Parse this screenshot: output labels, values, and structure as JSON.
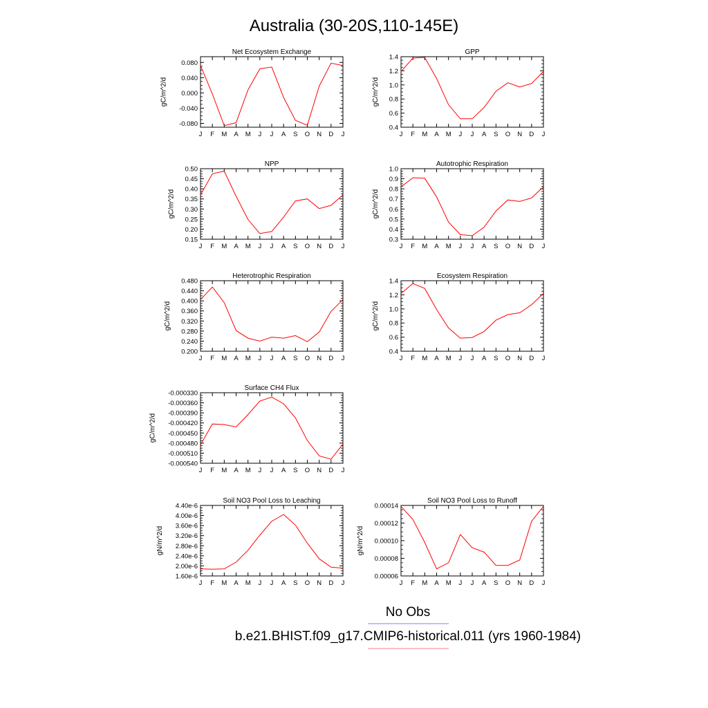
{
  "page": {
    "title": "Australia (30-20S,110-145E)",
    "legend": [
      {
        "label": "No Obs",
        "color": "#8080ff"
      },
      {
        "label": "b.e21.BHIST.f09_g17.CMIP6-historical.011 (yrs 1960-1984)",
        "color": "#ff8080"
      }
    ]
  },
  "colors": {
    "series": "#ff0000"
  },
  "chart_data": [
    {
      "type": "line",
      "title": "Net Ecosystem Exchange",
      "ylabel": "gC/m^2/d",
      "categories": [
        "J",
        "F",
        "M",
        "A",
        "M",
        "J",
        "J",
        "A",
        "S",
        "O",
        "N",
        "D",
        "J"
      ],
      "ylim": [
        -0.09,
        0.095
      ],
      "yticks": [
        -0.08,
        -0.04,
        0.0,
        0.04,
        0.08
      ],
      "ytick_labels": [
        "-0.080",
        "-0.040",
        "0.000",
        "0.040",
        "0.080"
      ],
      "values": [
        0.072,
        -0.003,
        -0.086,
        -0.078,
        0.008,
        0.063,
        0.068,
        -0.012,
        -0.072,
        -0.085,
        0.018,
        0.078,
        0.072
      ]
    },
    {
      "type": "line",
      "title": "GPP",
      "ylabel": "gC/m^2/d",
      "categories": [
        "J",
        "F",
        "M",
        "A",
        "M",
        "J",
        "J",
        "A",
        "S",
        "O",
        "N",
        "D",
        "J"
      ],
      "ylim": [
        0.4,
        1.4
      ],
      "yticks": [
        0.4,
        0.6,
        0.8,
        1.0,
        1.2,
        1.4
      ],
      "ytick_labels": [
        "0.4",
        "0.6",
        "0.8",
        "1.0",
        "1.2",
        "1.4"
      ],
      "values": [
        1.19,
        1.38,
        1.39,
        1.09,
        0.72,
        0.52,
        0.52,
        0.68,
        0.91,
        1.03,
        0.97,
        1.02,
        1.19
      ]
    },
    {
      "type": "line",
      "title": "NPP",
      "ylabel": "gC/m^2/d",
      "categories": [
        "J",
        "F",
        "M",
        "A",
        "M",
        "J",
        "J",
        "A",
        "S",
        "O",
        "N",
        "D",
        "J"
      ],
      "ylim": [
        0.15,
        0.5
      ],
      "yticks": [
        0.15,
        0.2,
        0.25,
        0.3,
        0.35,
        0.4,
        0.45,
        0.5
      ],
      "ytick_labels": [
        "0.15",
        "0.20",
        "0.25",
        "0.30",
        "0.35",
        "0.40",
        "0.45",
        "0.50"
      ],
      "values": [
        0.37,
        0.475,
        0.488,
        0.363,
        0.248,
        0.178,
        0.188,
        0.26,
        0.34,
        0.35,
        0.302,
        0.318,
        0.37
      ]
    },
    {
      "type": "line",
      "title": "Autotrophic Respiration",
      "ylabel": "gC/m^2/d",
      "categories": [
        "J",
        "F",
        "M",
        "A",
        "M",
        "J",
        "J",
        "A",
        "S",
        "O",
        "N",
        "D",
        "J"
      ],
      "ylim": [
        0.3,
        1.0
      ],
      "yticks": [
        0.3,
        0.4,
        0.5,
        0.6,
        0.7,
        0.8,
        0.9,
        1.0
      ],
      "ytick_labels": [
        "0.3",
        "0.4",
        "0.5",
        "0.6",
        "0.7",
        "0.8",
        "0.9",
        "1.0"
      ],
      "values": [
        0.82,
        0.91,
        0.905,
        0.72,
        0.47,
        0.345,
        0.335,
        0.42,
        0.58,
        0.69,
        0.675,
        0.71,
        0.82
      ]
    },
    {
      "type": "line",
      "title": "Heterotrophic Respiration",
      "ylabel": "gC/m^2/d",
      "categories": [
        "J",
        "F",
        "M",
        "A",
        "M",
        "J",
        "J",
        "A",
        "S",
        "O",
        "N",
        "D",
        "J"
      ],
      "ylim": [
        0.2,
        0.48
      ],
      "yticks": [
        0.2,
        0.24,
        0.28,
        0.32,
        0.36,
        0.4,
        0.44,
        0.48
      ],
      "ytick_labels": [
        "0.200",
        "0.240",
        "0.280",
        "0.320",
        "0.360",
        "0.400",
        "0.440",
        "0.480"
      ],
      "values": [
        0.405,
        0.455,
        0.393,
        0.282,
        0.252,
        0.24,
        0.256,
        0.252,
        0.262,
        0.238,
        0.276,
        0.358,
        0.405
      ]
    },
    {
      "type": "line",
      "title": "Ecosystem Respiration",
      "ylabel": "gC/m^2/d",
      "categories": [
        "J",
        "F",
        "M",
        "A",
        "M",
        "J",
        "J",
        "A",
        "S",
        "O",
        "N",
        "D",
        "J"
      ],
      "ylim": [
        0.4,
        1.4
      ],
      "yticks": [
        0.4,
        0.6,
        0.8,
        1.0,
        1.2,
        1.4
      ],
      "ytick_labels": [
        "0.4",
        "0.6",
        "0.8",
        "1.0",
        "1.2",
        "1.4"
      ],
      "values": [
        1.22,
        1.36,
        1.29,
        0.99,
        0.73,
        0.585,
        0.595,
        0.68,
        0.84,
        0.92,
        0.945,
        1.06,
        1.22
      ]
    },
    {
      "type": "line",
      "title": "Surface CH4 Flux",
      "ylabel": "gC/m^2/d",
      "categories": [
        "J",
        "F",
        "M",
        "A",
        "M",
        "J",
        "J",
        "A",
        "S",
        "O",
        "N",
        "D",
        "J"
      ],
      "ylim": [
        -0.00054,
        -0.00033
      ],
      "yticks": [
        -0.00054,
        -0.00051,
        -0.00048,
        -0.00045,
        -0.00042,
        -0.00039,
        -0.00036,
        -0.00033
      ],
      "ytick_labels": [
        "-0.000540",
        "-0.000510",
        "-0.000480",
        "-0.000450",
        "-0.000420",
        "-0.000390",
        "-0.000360",
        "-0.000330"
      ],
      "values": [
        -0.000485,
        -0.000423,
        -0.000425,
        -0.000432,
        -0.000395,
        -0.000355,
        -0.000343,
        -0.000363,
        -0.000405,
        -0.000472,
        -0.000518,
        -0.000528,
        -0.000483
      ]
    },
    null,
    {
      "type": "line",
      "title": "Soil NO3 Pool Loss to Leaching",
      "ylabel": "gN/m^2/d",
      "categories": [
        "J",
        "F",
        "M",
        "A",
        "M",
        "J",
        "J",
        "A",
        "S",
        "O",
        "N",
        "D",
        "J"
      ],
      "ylim": [
        1.6e-06,
        4.4e-06
      ],
      "yticks": [
        1.6e-06,
        2e-06,
        2.4e-06,
        2.8e-06,
        3.2e-06,
        3.6e-06,
        4e-06,
        4.4e-06
      ],
      "ytick_labels": [
        "1.60e-6",
        "2.00e-6",
        "2.40e-6",
        "2.80e-6",
        "3.20e-6",
        "3.60e-6",
        "4.00e-6",
        "4.40e-6"
      ],
      "values": [
        1.88e-06,
        1.87e-06,
        1.88e-06,
        2.15e-06,
        2.62e-06,
        3.22e-06,
        3.77e-06,
        4.04e-06,
        3.62e-06,
        2.9e-06,
        2.28e-06,
        1.95e-06,
        1.91e-06
      ]
    },
    {
      "type": "line",
      "title": "Soil NO3 Pool Loss to Runoff",
      "ylabel": "gN/m^2/d",
      "categories": [
        "J",
        "F",
        "M",
        "A",
        "M",
        "J",
        "J",
        "A",
        "S",
        "O",
        "N",
        "D",
        "J"
      ],
      "ylim": [
        6e-05,
        0.00014
      ],
      "yticks": [
        6e-05,
        8e-05,
        0.0001,
        0.00012,
        0.00014
      ],
      "ytick_labels": [
        "0.00006",
        "0.00008",
        "0.00010",
        "0.00012",
        "0.00014"
      ],
      "values": [
        0.000139,
        0.000124,
        9.8e-05,
        6.8e-05,
        7.5e-05,
        0.000107,
        9.2e-05,
        8.7e-05,
        7.2e-05,
        7.2e-05,
        7.8e-05,
        0.000122,
        0.000139
      ]
    }
  ]
}
